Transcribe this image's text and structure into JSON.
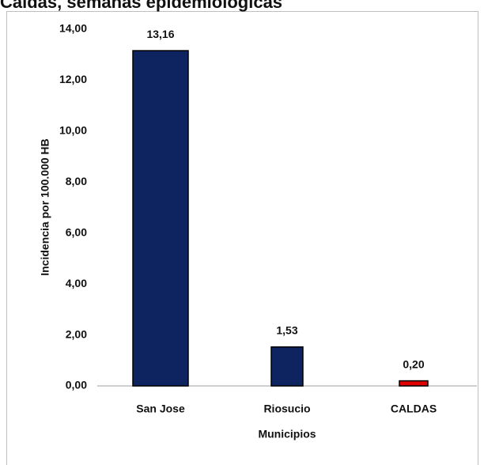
{
  "chart_data": {
    "type": "bar",
    "title": "Caldas, semanas epidemiológicas",
    "x_label": "Municipios",
    "y_label": "Incidencia por 100.000 HB",
    "categories": [
      "San Jose",
      "Riosucio",
      "CALDAS"
    ],
    "values": [
      13.16,
      1.53,
      0.2
    ],
    "value_labels": [
      "13,16",
      "1,53",
      "0,20"
    ],
    "colors": [
      "#0d2461",
      "#0d2461",
      "#e00000"
    ],
    "ylim": [
      0,
      14
    ],
    "yticks": [
      {
        "value": 0,
        "label": "0,00"
      },
      {
        "value": 2,
        "label": "2,00"
      },
      {
        "value": 4,
        "label": "4,00"
      },
      {
        "value": 6,
        "label": "6,00"
      },
      {
        "value": 8,
        "label": "8,00"
      },
      {
        "value": 10,
        "label": "10,00"
      },
      {
        "value": 12,
        "label": "12,00"
      },
      {
        "value": 14,
        "label": "14,00"
      }
    ],
    "grid": false
  }
}
